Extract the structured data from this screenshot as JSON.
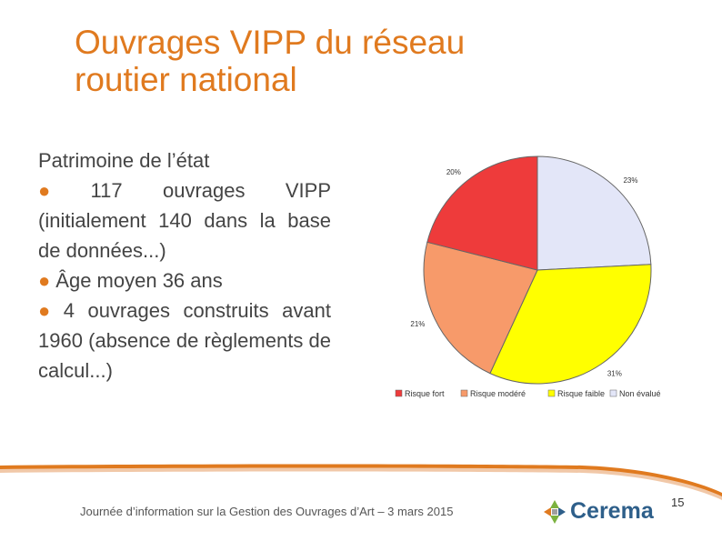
{
  "slide": {
    "title_line1": "Ouvrages VIPP du réseau",
    "title_line2": "routier national",
    "intro": "Patrimoine de l’état",
    "bullets": [
      "117 ouvrages VIPP (initialement 140 dans la base de données...)",
      "Âge moyen 36 ans",
      "4 ouvrages construits avant 1960 (absence de règlements de calcul...)"
    ],
    "bullet_symbol": "●"
  },
  "footer": {
    "text": "Journée d’information sur la Gestion des Ouvrages d’Art – 3 mars 2015",
    "logo_text": "Cerema",
    "page_number": "15"
  },
  "colors": {
    "accent": "#e07a1f",
    "risque_fort": "#ee3b3b",
    "risque_modere": "#f79a6a",
    "risque_faible": "#ffff00",
    "non_evalue": "#e3e6f8"
  },
  "chart_data": {
    "type": "pie",
    "title": "",
    "categories": [
      "Risque fort",
      "Risque modéré",
      "Risque faible",
      "Non évalué"
    ],
    "values": [
      20,
      21,
      31,
      23
    ],
    "value_labels": [
      "20%",
      "21%",
      "31%",
      "23%"
    ],
    "legend": [
      "Risque fort",
      "Risque modéré",
      "Risque faible",
      "Non évalué"
    ],
    "legend_position": "bottom"
  }
}
